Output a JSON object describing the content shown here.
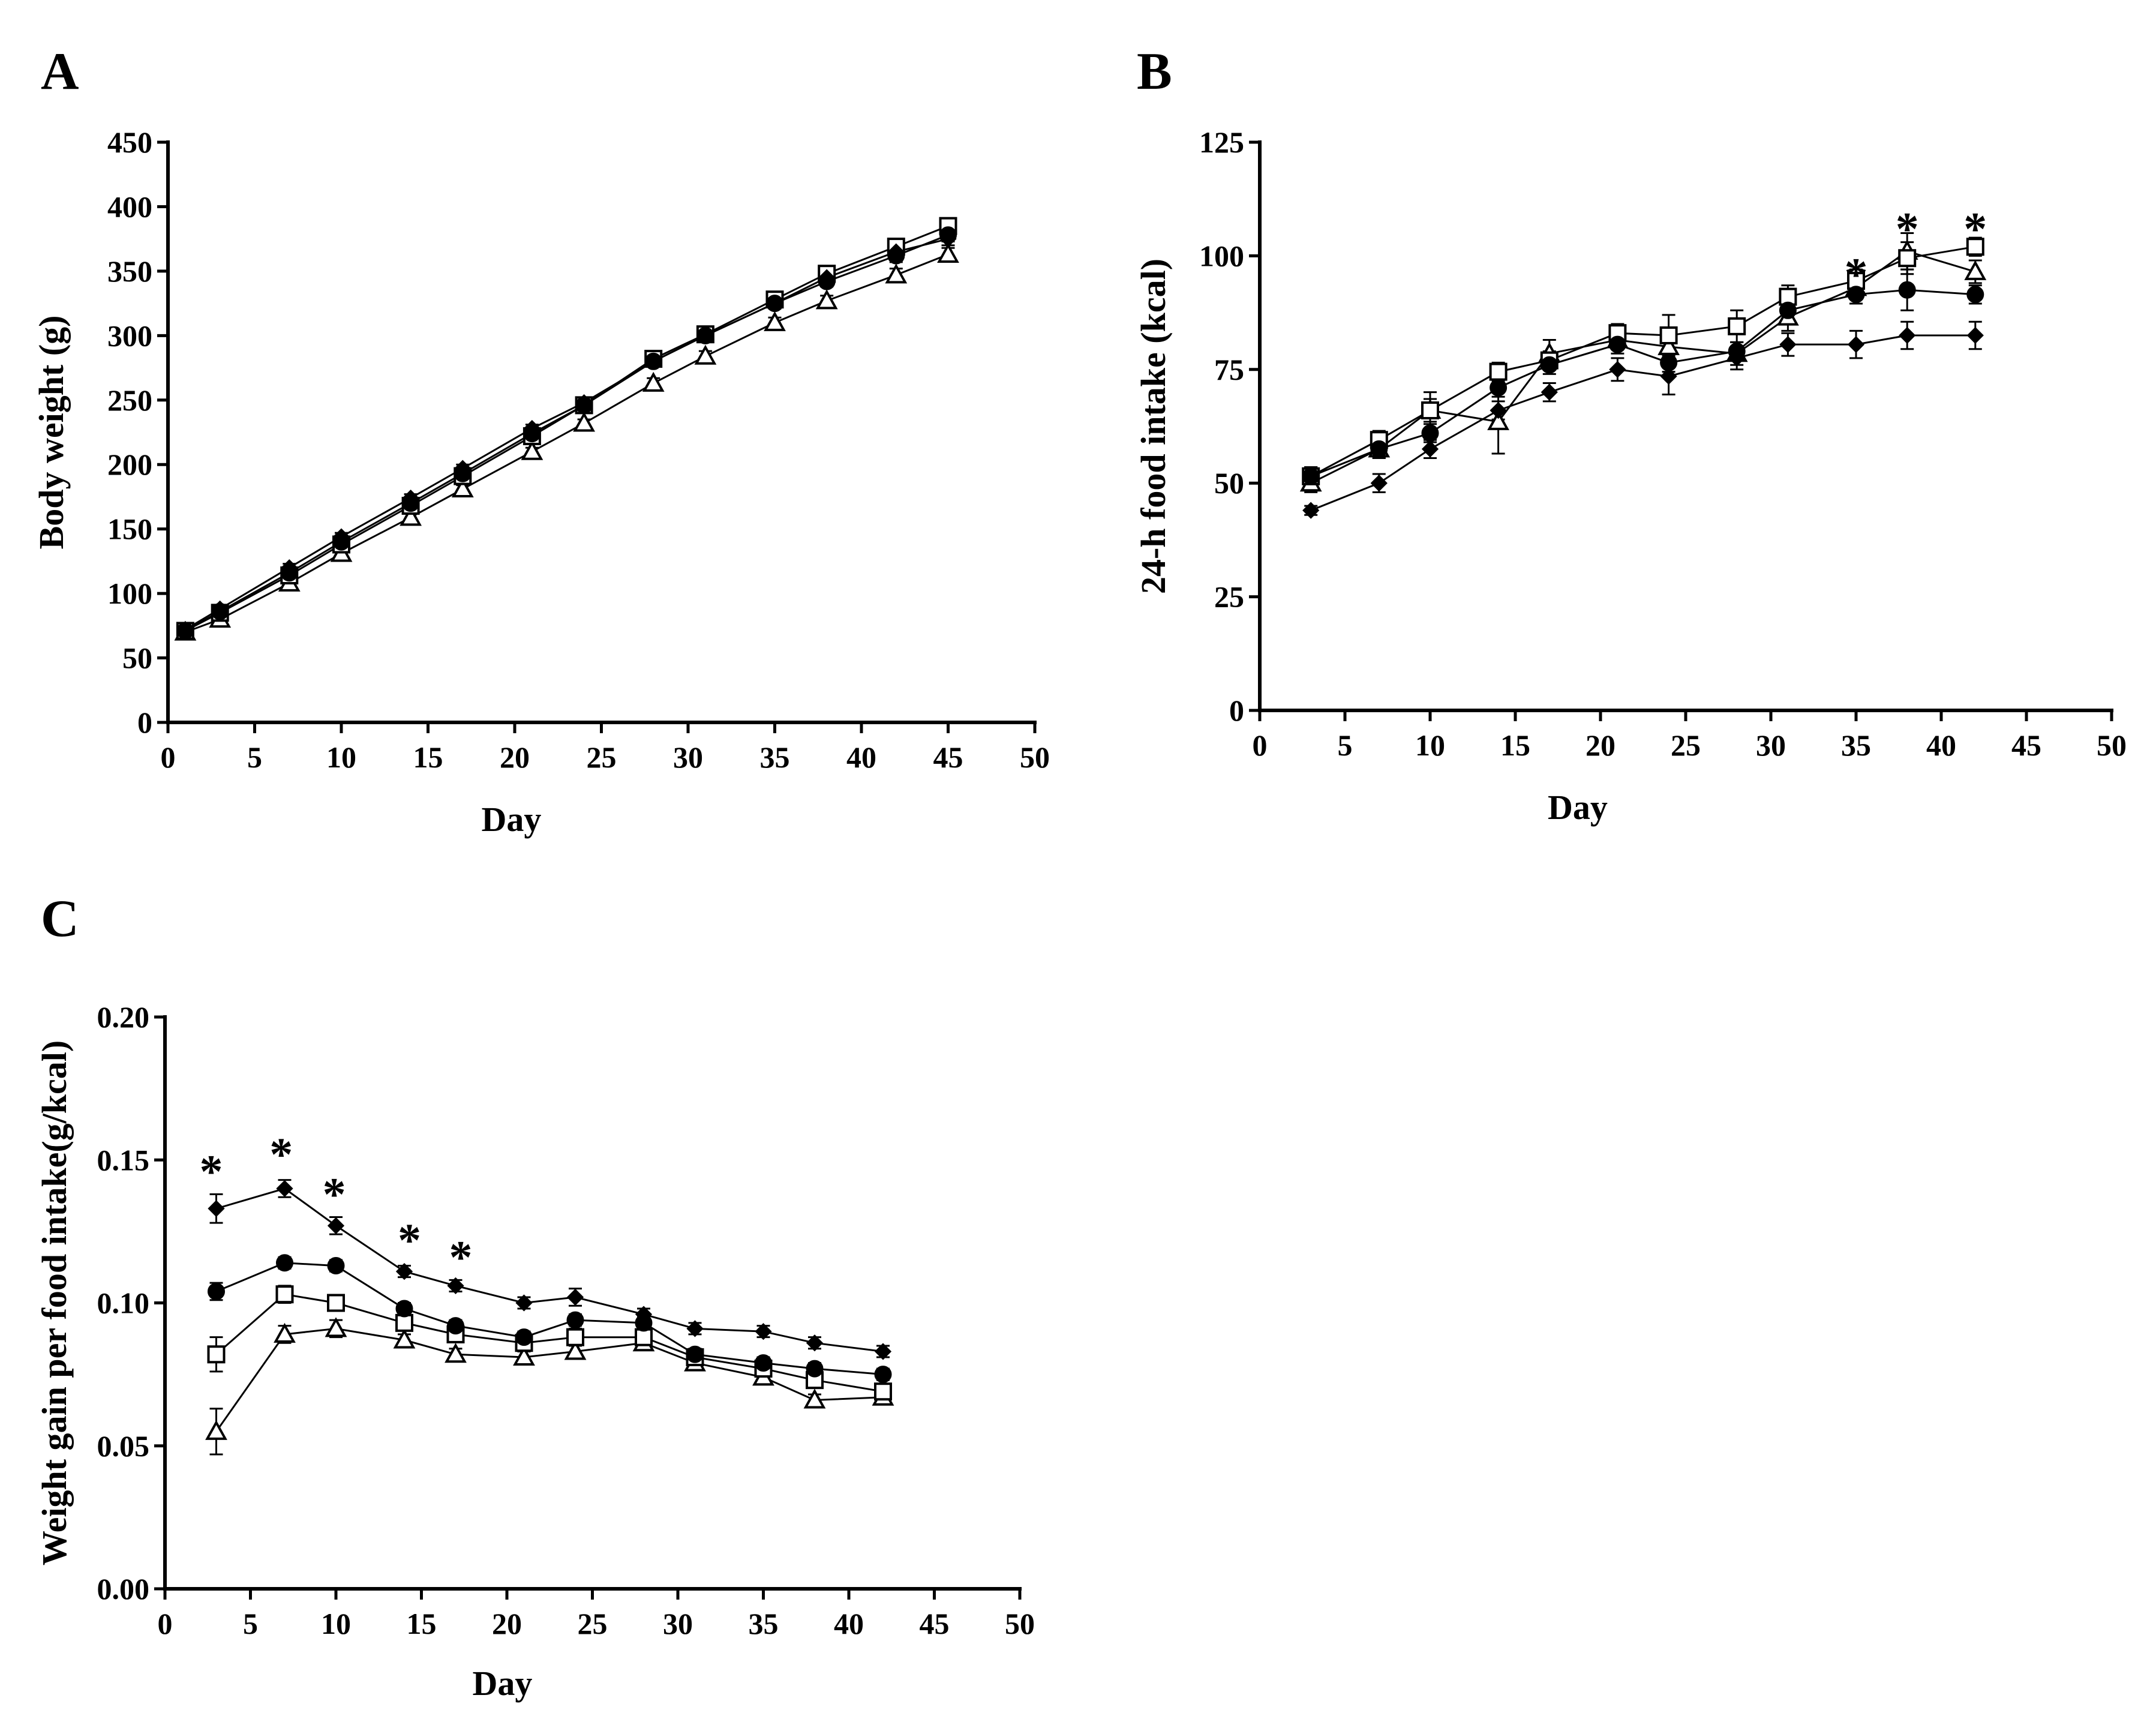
{
  "chart_data": [
    {
      "panel": "A",
      "type": "line",
      "xlabel": "Day",
      "ylabel": "Body weight (g)",
      "xlim": [
        0,
        50
      ],
      "ylim": [
        0,
        450
      ],
      "xticks": [
        0,
        5,
        10,
        15,
        20,
        25,
        30,
        35,
        40,
        45,
        50
      ],
      "yticks": [
        0,
        50,
        100,
        150,
        200,
        250,
        300,
        350,
        400,
        450
      ],
      "xtick_labels": [
        "0",
        "5",
        "10",
        "15",
        "20",
        "25",
        "30",
        "35",
        "40",
        "45",
        "50"
      ],
      "ytick_labels": [
        "0",
        "50",
        "100",
        "150",
        "200",
        "250",
        "300",
        "350",
        "400",
        "450"
      ],
      "x": [
        1,
        3,
        7,
        10,
        14,
        17,
        21,
        24,
        28,
        31,
        35,
        38,
        42,
        45
      ],
      "series": [
        {
          "name": "diamond",
          "marker": "diamond",
          "values": [
            72,
            88,
            120,
            144,
            174,
            197,
            228,
            248,
            280,
            300,
            325,
            345,
            365,
            375
          ],
          "err": [
            3,
            3,
            3,
            3,
            3,
            3,
            3,
            3,
            4,
            4,
            4,
            4,
            5,
            5
          ]
        },
        {
          "name": "circle",
          "marker": "circle",
          "values": [
            71,
            86,
            116,
            140,
            170,
            193,
            224,
            246,
            280,
            300,
            325,
            342,
            362,
            378
          ],
          "err": [
            3,
            3,
            3,
            3,
            3,
            3,
            3,
            3,
            4,
            4,
            4,
            4,
            5,
            5
          ]
        },
        {
          "name": "square",
          "marker": "square",
          "values": [
            71,
            85,
            114,
            138,
            168,
            191,
            222,
            246,
            282,
            301,
            328,
            348,
            369,
            385
          ],
          "err": [
            3,
            3,
            3,
            3,
            3,
            3,
            3,
            3,
            4,
            4,
            4,
            4,
            5,
            5
          ]
        },
        {
          "name": "triangle",
          "marker": "triangle",
          "values": [
            70,
            80,
            108,
            131,
            159,
            181,
            210,
            232,
            263,
            284,
            310,
            327,
            347,
            363
          ],
          "err": [
            3,
            3,
            3,
            3,
            3,
            3,
            3,
            3,
            4,
            4,
            4,
            4,
            5,
            5
          ]
        }
      ],
      "annotations": []
    },
    {
      "panel": "B",
      "type": "line",
      "xlabel": "Day",
      "ylabel": "24-h food intake (kcal)",
      "xlim": [
        0,
        50
      ],
      "ylim": [
        0,
        125
      ],
      "xticks": [
        0,
        5,
        10,
        15,
        20,
        25,
        30,
        35,
        40,
        45,
        50
      ],
      "yticks": [
        0,
        25,
        50,
        75,
        100,
        125
      ],
      "xtick_labels": [
        "0",
        "5",
        "10",
        "15",
        "20",
        "25",
        "30",
        "35",
        "40",
        "45",
        "50"
      ],
      "ytick_labels": [
        "0",
        "25",
        "50",
        "75",
        "100",
        "125"
      ],
      "x": [
        3,
        7,
        10,
        14,
        17,
        21,
        24,
        28,
        31,
        35,
        38,
        42
      ],
      "series": [
        {
          "name": "diamond",
          "marker": "diamond",
          "values": [
            44,
            50,
            57.5,
            66,
            70,
            75,
            73.5,
            77.5,
            80.5,
            80.5,
            82.5,
            82.5
          ],
          "err": [
            1,
            2,
            2,
            2,
            2,
            2.5,
            4,
            2.5,
            2.5,
            3,
            3,
            3
          ]
        },
        {
          "name": "circle",
          "marker": "circle",
          "values": [
            51.5,
            57.5,
            61,
            71,
            76,
            80.5,
            76.5,
            79,
            88,
            91.5,
            92.5,
            91.5
          ],
          "err": [
            2,
            2,
            2,
            2,
            2,
            2,
            2,
            2,
            2,
            2,
            4.5,
            2
          ]
        },
        {
          "name": "square",
          "marker": "square",
          "values": [
            51.5,
            59.5,
            66,
            74.5,
            77,
            83,
            82.5,
            84.5,
            91,
            94.5,
            99.5,
            102
          ],
          "err": [
            2,
            2,
            4,
            2,
            2,
            2,
            4.5,
            3.5,
            2.5,
            2.5,
            3.5,
            2
          ]
        },
        {
          "name": "triangle",
          "marker": "triangle",
          "values": [
            50,
            57.5,
            66,
            63.5,
            78.5,
            81.5,
            80,
            78.5,
            86.5,
            93,
            101,
            96.5
          ],
          "err": [
            2,
            2,
            2.5,
            7,
            3,
            2,
            3,
            2.5,
            3,
            2.5,
            4,
            2.5
          ]
        }
      ],
      "annotations": [
        {
          "x": 35,
          "y": 97.5,
          "text": "*"
        },
        {
          "x": 38,
          "y": 107.5,
          "text": "*"
        },
        {
          "x": 42,
          "y": 107.5,
          "text": "*"
        }
      ]
    },
    {
      "panel": "C",
      "type": "line",
      "xlabel": "Day",
      "ylabel": "Weight gain per food intake(g/kcal)",
      "xlim": [
        0,
        50
      ],
      "ylim": [
        0,
        0.2
      ],
      "xticks": [
        0,
        5,
        10,
        15,
        20,
        25,
        30,
        35,
        40,
        45,
        50
      ],
      "yticks": [
        0,
        0.05,
        0.1,
        0.15,
        0.2
      ],
      "xtick_labels": [
        "0",
        "5",
        "10",
        "15",
        "20",
        "25",
        "30",
        "35",
        "40",
        "45",
        "50"
      ],
      "ytick_labels": [
        "0.00",
        "0.05",
        "0.10",
        "0.15",
        "0.20"
      ],
      "x": [
        3,
        7,
        10,
        14,
        17,
        21,
        24,
        28,
        31,
        35,
        38,
        42
      ],
      "series": [
        {
          "name": "diamond",
          "marker": "diamond",
          "values": [
            0.133,
            0.14,
            0.127,
            0.111,
            0.106,
            0.1,
            0.102,
            0.096,
            0.091,
            0.09,
            0.086,
            0.083
          ],
          "err": [
            0.005,
            0.003,
            0.003,
            0.002,
            0.002,
            0.002,
            0.003,
            0.002,
            0.002,
            0.002,
            0.002,
            0.002
          ]
        },
        {
          "name": "circle",
          "marker": "circle",
          "values": [
            0.104,
            0.114,
            0.113,
            0.098,
            0.092,
            0.088,
            0.094,
            0.093,
            0.082,
            0.079,
            0.077,
            0.075
          ],
          "err": [
            0.003,
            0.002,
            0.002,
            0.002,
            0.002,
            0.002,
            0.002,
            0.002,
            0.002,
            0.002,
            0.002,
            0.002
          ]
        },
        {
          "name": "square",
          "marker": "square",
          "values": [
            0.082,
            0.103,
            0.1,
            0.093,
            0.089,
            0.086,
            0.088,
            0.088,
            0.081,
            0.077,
            0.073,
            0.069
          ],
          "err": [
            0.006,
            0.003,
            0.002,
            0.002,
            0.002,
            0.002,
            0.003,
            0.002,
            0.002,
            0.002,
            0.002,
            0.002
          ]
        },
        {
          "name": "triangle",
          "marker": "triangle",
          "values": [
            0.055,
            0.089,
            0.091,
            0.087,
            0.082,
            0.081,
            0.083,
            0.086,
            0.079,
            0.074,
            0.066,
            0.067
          ],
          "err": [
            0.008,
            0.003,
            0.003,
            0.002,
            0.002,
            0.002,
            0.002,
            0.002,
            0.002,
            0.002,
            0.002,
            0.002
          ]
        }
      ],
      "annotations": [
        {
          "x": 2.7,
          "y": 0.1485,
          "text": "*"
        },
        {
          "x": 6.8,
          "y": 0.1545,
          "text": "*"
        },
        {
          "x": 9.9,
          "y": 0.1405,
          "text": "*"
        },
        {
          "x": 14.3,
          "y": 0.1245,
          "text": "*"
        },
        {
          "x": 17.3,
          "y": 0.1185,
          "text": "*"
        }
      ]
    }
  ]
}
